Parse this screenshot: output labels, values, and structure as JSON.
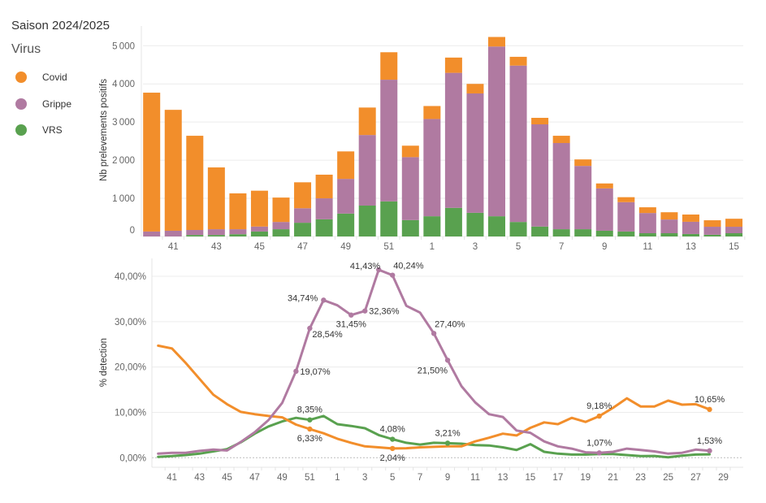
{
  "title": "Saison 2024/2025",
  "legend": {
    "title": "Virus",
    "items": [
      {
        "label": "Covid",
        "color": "#F28E2B"
      },
      {
        "label": "Grippe",
        "color": "#B07AA1"
      },
      {
        "label": "VRS",
        "color": "#59A14F"
      }
    ]
  },
  "chart_data": [
    {
      "type": "bar",
      "stacked": true,
      "title": "",
      "xlabel": "",
      "ylabel": "Nb prelevements positifs",
      "ylim": [
        0,
        5000
      ],
      "yticks": [
        0,
        1000,
        2000,
        3000,
        4000,
        5000
      ],
      "ytick_labels": [
        "0",
        "1 000",
        "2 000",
        "3 000",
        "4 000",
        "5 000"
      ],
      "grid": true,
      "legend": "left",
      "categories": [
        "40",
        "41",
        "42",
        "43",
        "44",
        "45",
        "46",
        "47",
        "48",
        "49",
        "50",
        "51",
        "52",
        "1",
        "2",
        "3",
        "4",
        "5",
        "6",
        "7",
        "8",
        "9",
        "10",
        "11",
        "12",
        "13",
        "14",
        "15"
      ],
      "xtick_labels": [
        "41",
        "43",
        "45",
        "47",
        "49",
        "51",
        "1",
        "3",
        "5",
        "7",
        "9",
        "11",
        "13",
        "15"
      ],
      "stack_order": [
        "VRS",
        "Grippe",
        "Covid"
      ],
      "series": [
        {
          "name": "Covid",
          "values": [
            3640,
            3170,
            2470,
            1620,
            940,
            940,
            640,
            680,
            620,
            720,
            720,
            720,
            300,
            340,
            400,
            250,
            250,
            230,
            170,
            190,
            170,
            130,
            130,
            150,
            190,
            190,
            170,
            210
          ]
        },
        {
          "name": "Grippe",
          "values": [
            130,
            150,
            130,
            150,
            130,
            130,
            190,
            380,
            550,
            910,
            1850,
            3190,
            1650,
            2550,
            3540,
            3130,
            4450,
            4100,
            2680,
            2260,
            1660,
            1110,
            770,
            530,
            360,
            320,
            210,
            170
          ]
        },
        {
          "name": "VRS",
          "values": [
            0,
            0,
            40,
            40,
            60,
            130,
            190,
            360,
            450,
            600,
            810,
            920,
            430,
            530,
            750,
            620,
            530,
            380,
            260,
            190,
            190,
            150,
            130,
            85,
            85,
            65,
            45,
            85
          ]
        }
      ]
    },
    {
      "type": "line",
      "title": "",
      "xlabel": "",
      "ylabel": "% detection",
      "ylim": [
        0,
        40
      ],
      "yticks": [
        0,
        10,
        20,
        30,
        40
      ],
      "ytick_labels": [
        "0,00%",
        "10,00%",
        "20,00%",
        "30,00%",
        "40,00%"
      ],
      "grid": true,
      "legend": "left",
      "x": [
        "40",
        "41",
        "42",
        "43",
        "44",
        "45",
        "46",
        "47",
        "48",
        "49",
        "50",
        "51",
        "52",
        "1",
        "2",
        "3",
        "4",
        "5",
        "6",
        "7",
        "8",
        "9",
        "10",
        "11",
        "12",
        "13",
        "14",
        "15",
        "16",
        "17",
        "18",
        "19",
        "20",
        "21",
        "22",
        "23",
        "24",
        "25",
        "26",
        "27",
        "28",
        "29"
      ],
      "xtick_labels": [
        "41",
        "43",
        "45",
        "47",
        "49",
        "51",
        "1",
        "3",
        "5",
        "7",
        "9",
        "11",
        "13",
        "15",
        "17",
        "19",
        "21",
        "23",
        "25",
        "27",
        "29"
      ],
      "series": [
        {
          "name": "Covid",
          "values": [
            24.7,
            24.1,
            20.9,
            17.4,
            13.9,
            11.8,
            10.1,
            9.6,
            9.2,
            8.9,
            7.3,
            6.33,
            5.4,
            4.2,
            3.3,
            2.5,
            2.3,
            2.04,
            2.1,
            2.3,
            2.4,
            2.5,
            2.5,
            3.6,
            4.4,
            5.3,
            4.9,
            6.6,
            7.8,
            7.4,
            8.8,
            7.9,
            9.18,
            11.0,
            13.1,
            11.3,
            11.3,
            12.6,
            11.7,
            11.8,
            10.65,
            null
          ]
        },
        {
          "name": "Grippe",
          "values": [
            0.9,
            1.1,
            1.1,
            1.5,
            1.8,
            1.6,
            3.5,
            5.6,
            8.3,
            12.1,
            19.07,
            28.54,
            34.74,
            33.6,
            31.45,
            32.36,
            41.43,
            40.24,
            33.5,
            32.0,
            27.4,
            21.5,
            15.8,
            12.2,
            9.6,
            9.0,
            6.0,
            5.5,
            3.6,
            2.5,
            2.0,
            1.2,
            1.07,
            1.3,
            2.0,
            1.7,
            1.4,
            0.9,
            1.1,
            1.8,
            1.53,
            null
          ]
        },
        {
          "name": "VRS",
          "values": [
            0.2,
            0.35,
            0.6,
            0.9,
            1.4,
            1.9,
            3.4,
            5.3,
            6.9,
            8.0,
            8.8,
            8.35,
            9.2,
            7.4,
            7.0,
            6.5,
            5.0,
            4.08,
            3.3,
            2.9,
            3.3,
            3.21,
            3.1,
            2.8,
            2.7,
            2.3,
            1.7,
            3.0,
            1.3,
            0.9,
            0.7,
            0.7,
            0.8,
            0.8,
            0.6,
            0.35,
            0.4,
            0.1,
            0.45,
            0.7,
            0.75,
            null
          ]
        }
      ],
      "annotations": [
        {
          "series": "Grippe",
          "x": "50",
          "value": 19.07,
          "text": "19,07%",
          "pos": "right"
        },
        {
          "series": "Grippe",
          "x": "51",
          "value": 28.54,
          "text": "28,54%",
          "pos": "below-right"
        },
        {
          "series": "Grippe",
          "x": "52",
          "value": 34.74,
          "text": "34,74%",
          "pos": "left"
        },
        {
          "series": "Grippe",
          "x": "2",
          "value": 31.45,
          "text": "31,45%",
          "pos": "below"
        },
        {
          "series": "Grippe",
          "x": "3",
          "value": 32.36,
          "text": "32,36%",
          "pos": "right"
        },
        {
          "series": "Grippe",
          "x": "4",
          "value": 41.43,
          "text": "41,43%",
          "pos": "above-left"
        },
        {
          "series": "Grippe",
          "x": "5",
          "value": 40.24,
          "text": "40,24%",
          "pos": "above-right"
        },
        {
          "series": "Grippe",
          "x": "8",
          "value": 27.4,
          "text": "27,40%",
          "pos": "above-right"
        },
        {
          "series": "Grippe",
          "x": "9",
          "value": 21.5,
          "text": "21,50%",
          "pos": "below-left"
        },
        {
          "series": "Grippe",
          "x": "20",
          "value": 1.07,
          "text": "1,07%",
          "pos": "above"
        },
        {
          "series": "Grippe",
          "x": "28",
          "value": 1.53,
          "text": "1,53%",
          "pos": "above"
        },
        {
          "series": "Covid",
          "x": "51",
          "value": 6.33,
          "text": "6,33%",
          "pos": "below"
        },
        {
          "series": "Covid",
          "x": "5",
          "value": 2.04,
          "text": "2,04%",
          "pos": "below"
        },
        {
          "series": "Covid",
          "x": "20",
          "value": 9.18,
          "text": "9,18%",
          "pos": "above"
        },
        {
          "series": "Covid",
          "x": "28",
          "value": 10.65,
          "text": "10,65%",
          "pos": "above"
        },
        {
          "series": "VRS",
          "x": "51",
          "value": 8.35,
          "text": "8,35%",
          "pos": "above"
        },
        {
          "series": "VRS",
          "x": "5",
          "value": 4.08,
          "text": "4,08%",
          "pos": "above"
        },
        {
          "series": "VRS",
          "x": "9",
          "value": 3.21,
          "text": "3,21%",
          "pos": "above"
        }
      ]
    }
  ]
}
